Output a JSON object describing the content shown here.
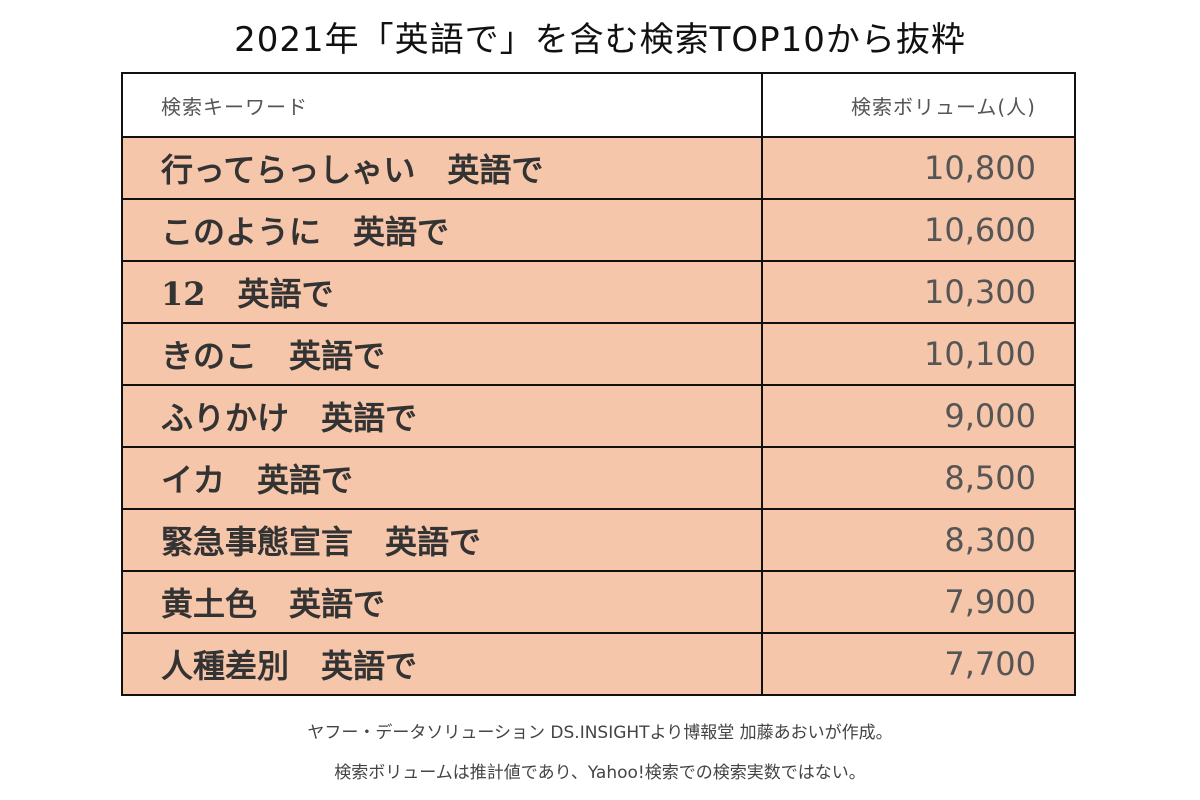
{
  "title": "2021年「英語で」を含む検索TOP10から抜粋",
  "chart_data": {
    "type": "table",
    "columns": [
      "検索キーワード",
      "検索ボリューム(人)"
    ],
    "rows": [
      {
        "keyword": "行ってらっしゃい　英語で",
        "volume": "10,800"
      },
      {
        "keyword": "このように　英語で",
        "volume": "10,600"
      },
      {
        "keyword": "12　英語で",
        "volume": "10,300"
      },
      {
        "keyword": "きのこ　英語で",
        "volume": "10,100"
      },
      {
        "keyword": "ふりかけ　英語で",
        "volume": "9,000"
      },
      {
        "keyword": "イカ　英語で",
        "volume": "8,500"
      },
      {
        "keyword": "緊急事態宣言　英語で",
        "volume": "8,300"
      },
      {
        "keyword": "黄土色　英語で",
        "volume": "7,900"
      },
      {
        "keyword": "人種差別　英語で",
        "volume": "7,700"
      }
    ]
  },
  "notes": [
    "ヤフー・データソリューション DS.INSIGHTより博報堂 加藤あおいが作成。",
    "検索ボリュームは推計値であり、Yahoo!検索での検索実数ではない。"
  ],
  "colors": {
    "row_fill": "#f6c6aa",
    "border": "#111111"
  }
}
